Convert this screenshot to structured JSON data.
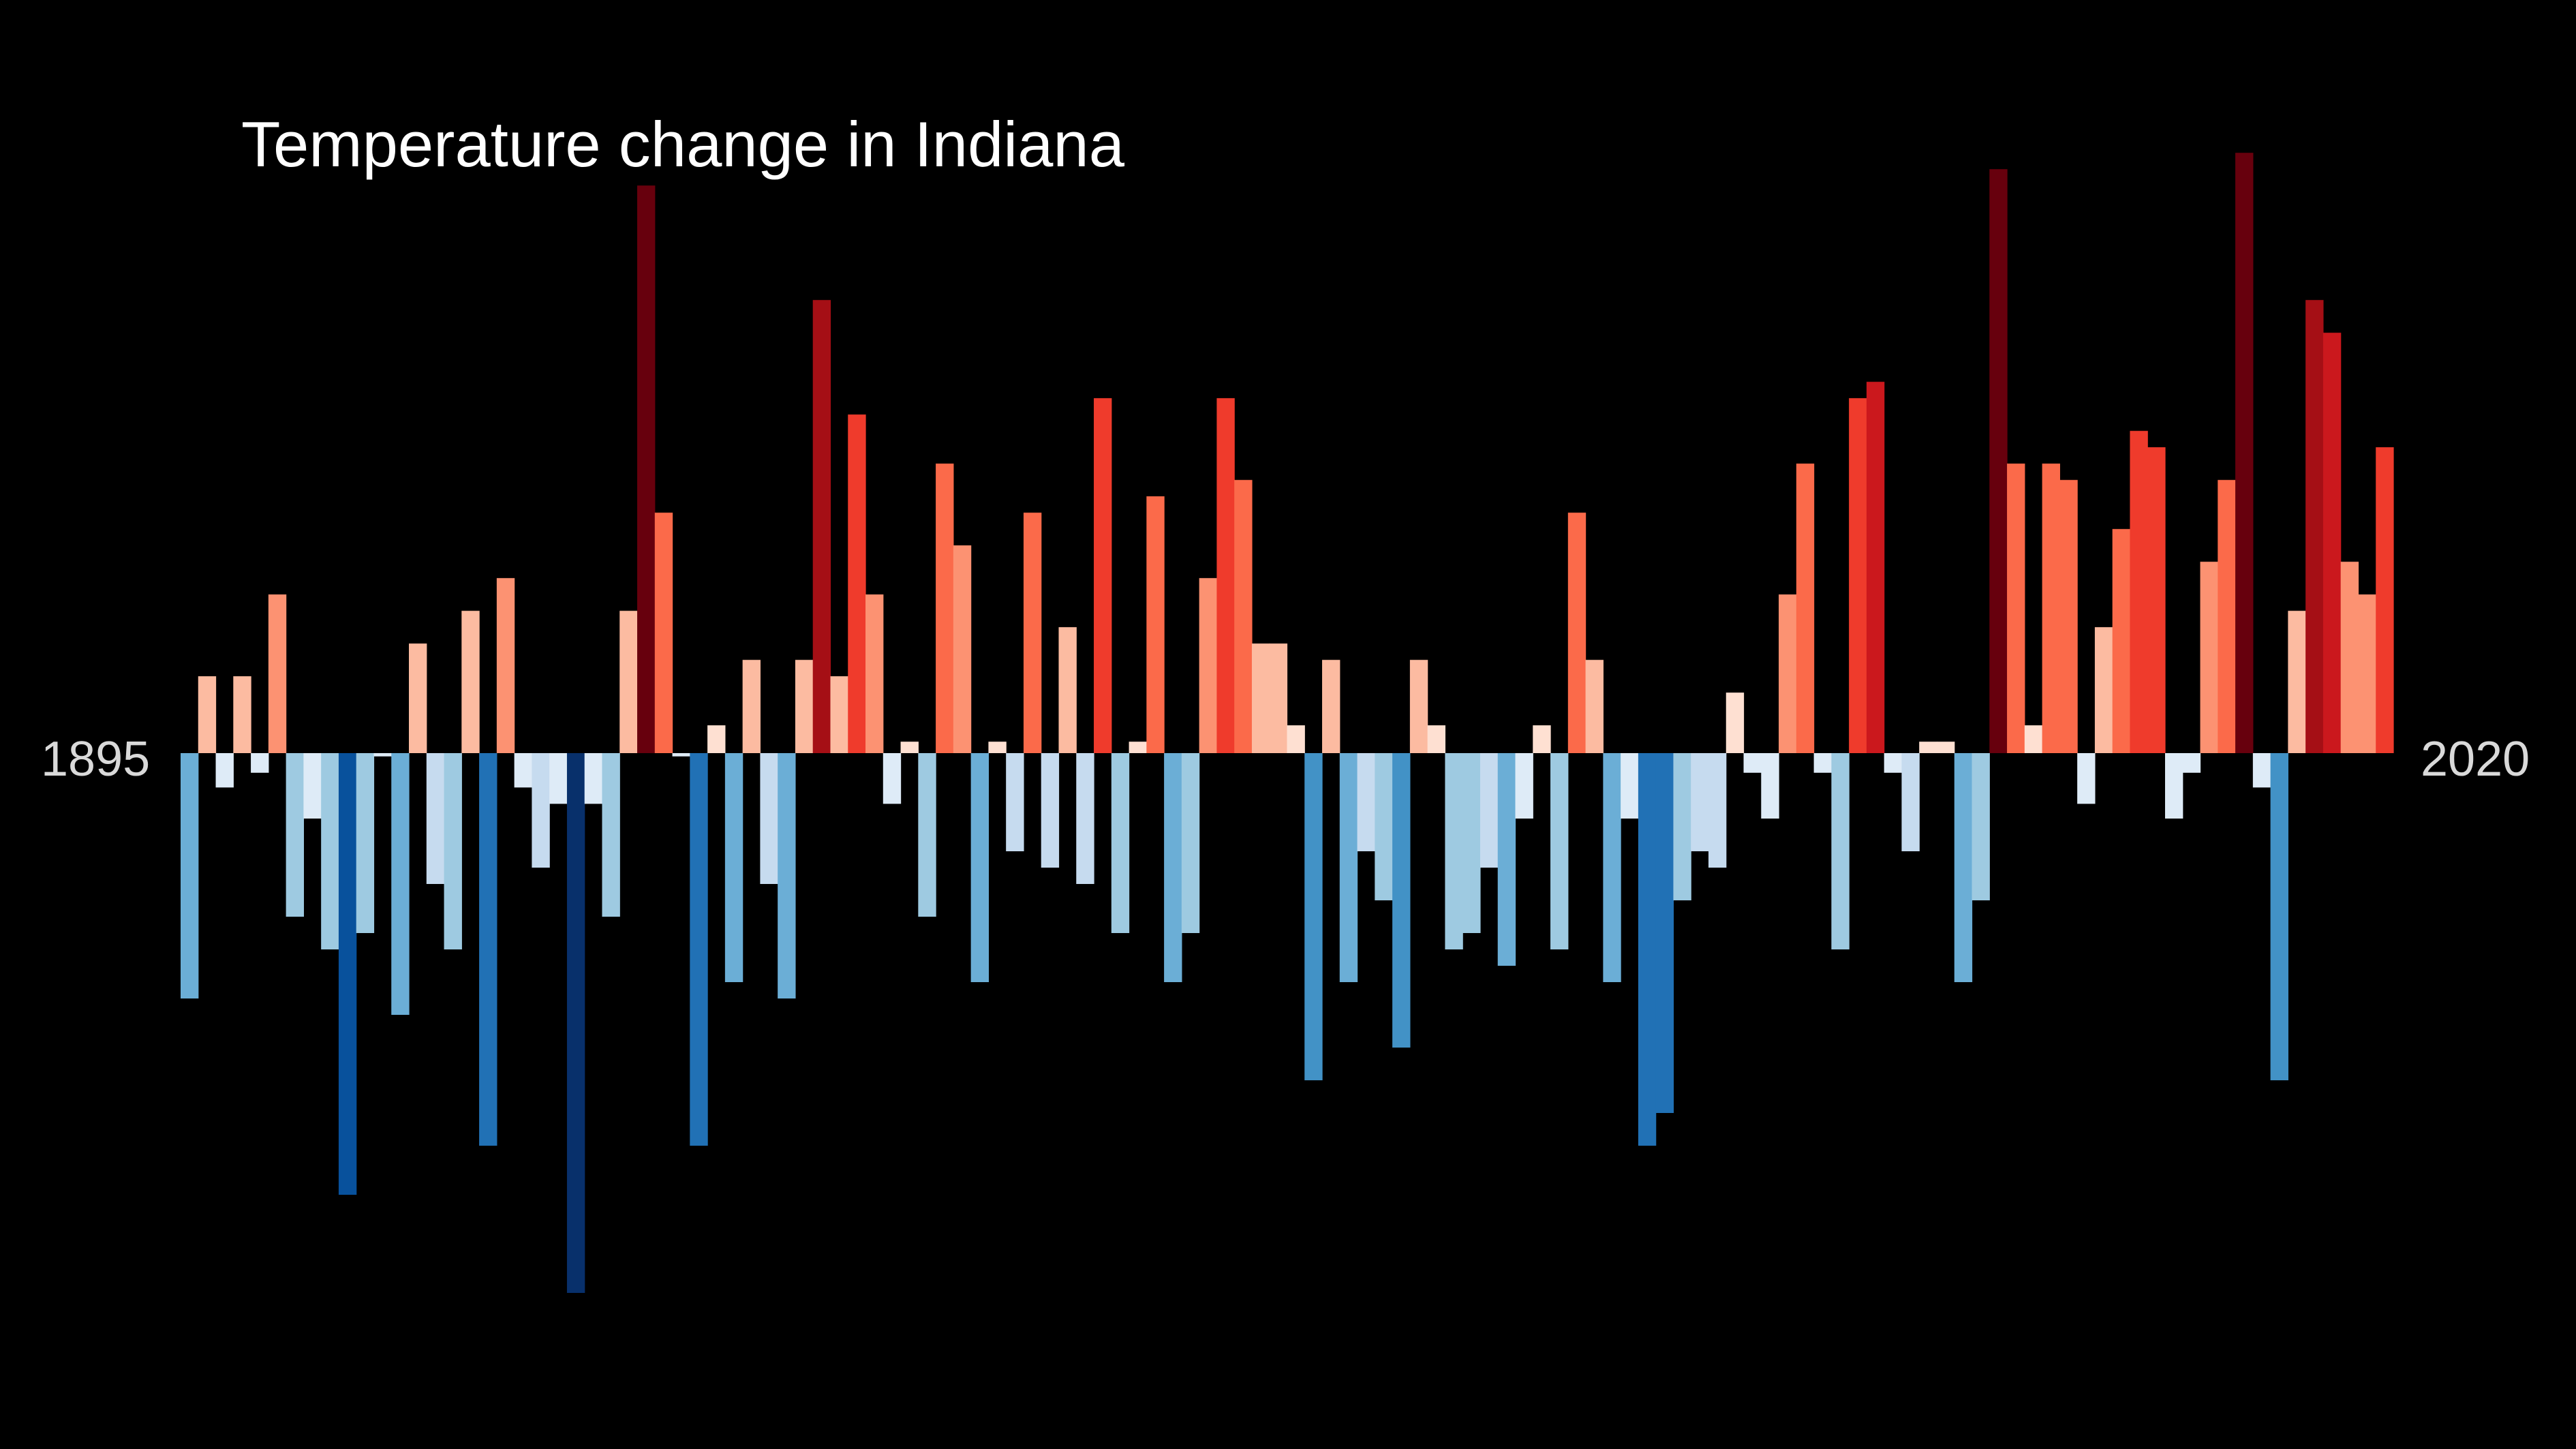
{
  "chart_data": {
    "type": "bar",
    "title": "Temperature change in Indiana",
    "xlabel": "",
    "ylabel": "",
    "start_label": "1895",
    "end_label": "2020",
    "x_start": 1895,
    "x_end": 2020,
    "ylim": [
      -3.3,
      3.6
    ],
    "grid": false,
    "legend": "none",
    "background": "#000000",
    "color_scale": {
      "negative": [
        "#deebf7",
        "#c6dbef",
        "#9ecae1",
        "#6baed6",
        "#4292c6",
        "#2171b5",
        "#08519c",
        "#08306b"
      ],
      "positive": [
        "#fee0d2",
        "#fcbba1",
        "#fc9272",
        "#fb6a4a",
        "#ef3b2c",
        "#cb181d",
        "#a50f15",
        "#67000d"
      ]
    },
    "values": [
      -1.5,
      0.47,
      -0.21,
      0.47,
      -0.12,
      0.97,
      -1.0,
      -0.4,
      -1.2,
      -2.7,
      -1.1,
      -0.02,
      -1.6,
      0.67,
      -0.8,
      -1.2,
      0.87,
      -2.4,
      1.07,
      -0.21,
      -0.7,
      -0.31,
      -3.3,
      -0.31,
      -1.0,
      0.87,
      3.47,
      1.47,
      -0.02,
      -2.4,
      0.17,
      -1.4,
      0.57,
      -0.8,
      -1.5,
      0.57,
      2.77,
      0.47,
      2.07,
      0.97,
      -0.31,
      0.07,
      -1.0,
      1.77,
      1.27,
      -1.4,
      0.07,
      -0.6,
      1.47,
      -0.7,
      0.77,
      -0.8,
      2.17,
      -1.1,
      0.07,
      1.57,
      -1.4,
      -1.1,
      1.07,
      2.17,
      1.67,
      0.67,
      0.67,
      0.17,
      -2.0,
      0.57,
      -1.4,
      -0.6,
      -0.9,
      -1.8,
      0.57,
      0.17,
      -1.2,
      -1.1,
      -0.7,
      -1.3,
      -0.4,
      0.17,
      -1.2,
      1.47,
      0.57,
      -1.4,
      -0.4,
      -2.4,
      -2.2,
      -0.9,
      -0.6,
      -0.7,
      0.37,
      -0.12,
      -0.4,
      0.97,
      1.77,
      -0.12,
      -1.2,
      2.17,
      2.27,
      -0.12,
      -0.6,
      0.07,
      0.07,
      -1.4,
      -0.9,
      3.57,
      1.77,
      0.17,
      1.77,
      1.67,
      -0.31,
      0.77,
      1.37,
      1.97,
      1.87,
      -0.4,
      -0.12,
      1.17,
      1.67,
      3.67,
      -0.21,
      -2.0,
      0.87,
      2.77,
      2.57,
      1.17,
      0.97,
      1.87
    ]
  }
}
